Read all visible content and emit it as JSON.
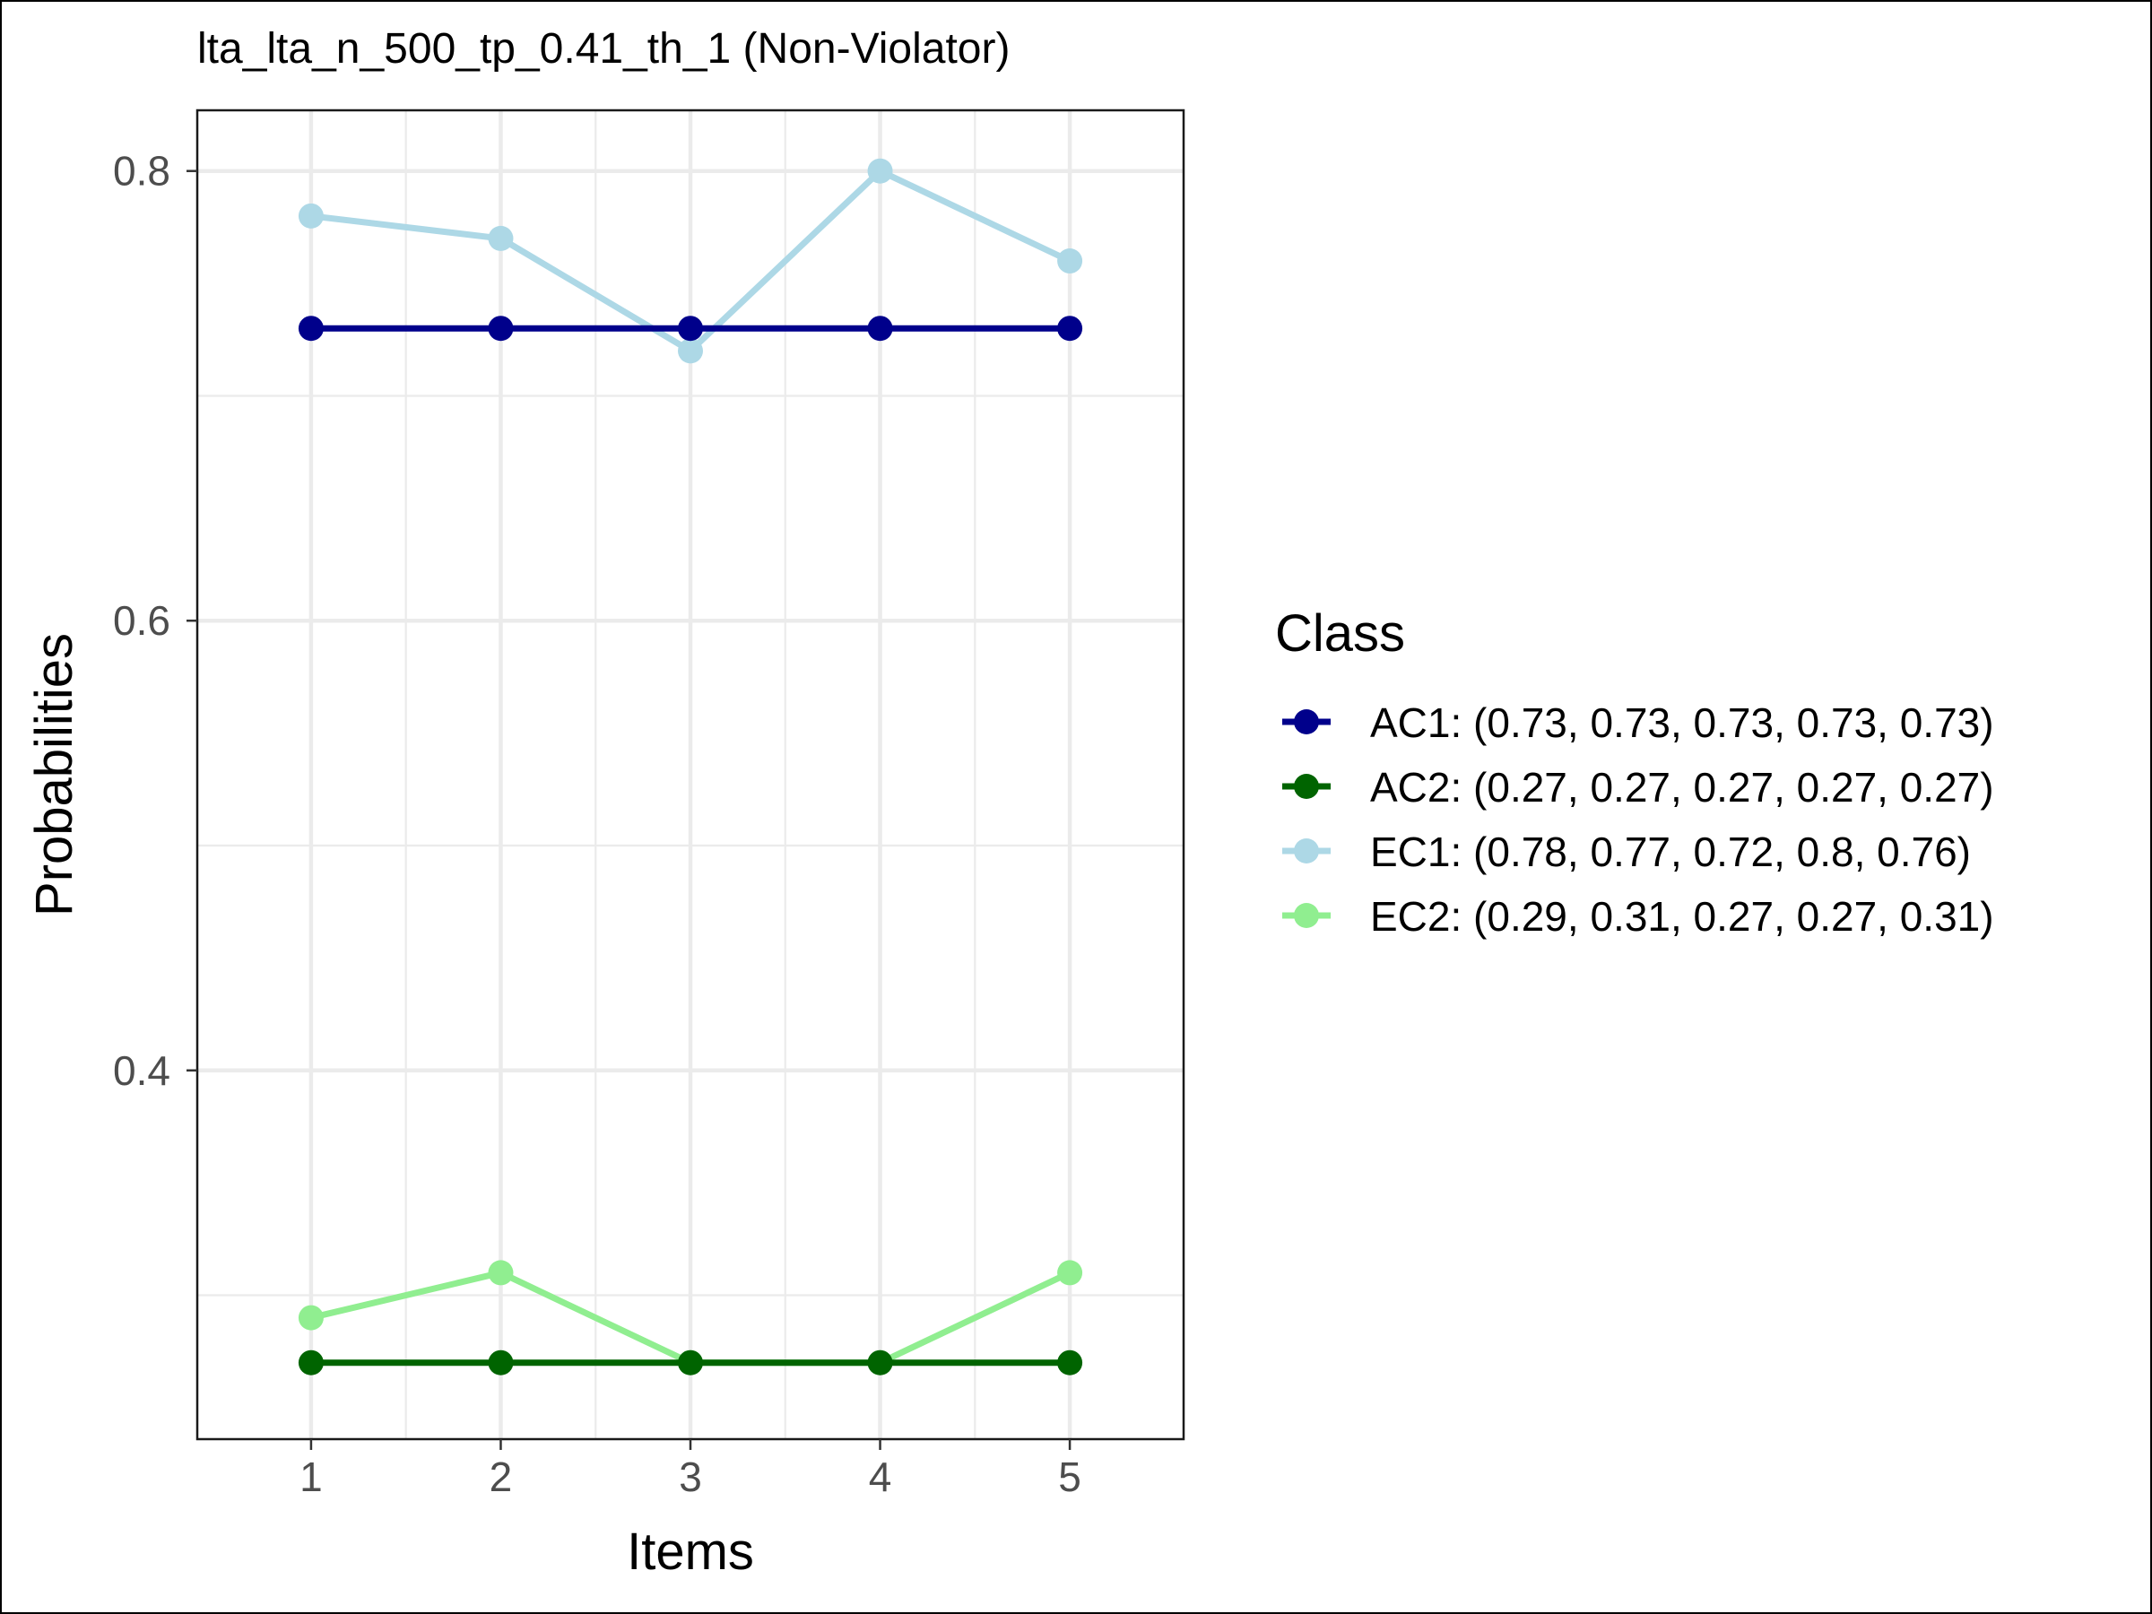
{
  "chart_data": {
    "type": "line",
    "title": "lta_lta_n_500_tp_0.41_th_1 (Non-Violator)",
    "xlabel": "Items",
    "ylabel": "Probabilities",
    "categories": [
      "1",
      "2",
      "3",
      "4",
      "5"
    ],
    "ylim": [
      0.236,
      0.827
    ],
    "yticks": [
      0.4,
      0.6,
      0.8
    ],
    "ytick_labels": [
      "0.4",
      "0.6",
      "0.8"
    ],
    "grid": true,
    "legend_title": "Class",
    "legend_position": "right",
    "series": [
      {
        "name": "AC1",
        "values": [
          0.73,
          0.73,
          0.73,
          0.73,
          0.73
        ],
        "color": "#00008B",
        "legend_label": "AC1: (0.73, 0.73, 0.73, 0.73, 0.73)"
      },
      {
        "name": "AC2",
        "values": [
          0.27,
          0.27,
          0.27,
          0.27,
          0.27
        ],
        "color": "#006400",
        "legend_label": "AC2: (0.27, 0.27, 0.27, 0.27, 0.27)"
      },
      {
        "name": "EC1",
        "values": [
          0.78,
          0.77,
          0.72,
          0.8,
          0.76
        ],
        "color": "#ADD8E6",
        "legend_label": "EC1: (0.78, 0.77, 0.72, 0.8, 0.76)"
      },
      {
        "name": "EC2",
        "values": [
          0.29,
          0.31,
          0.27,
          0.27,
          0.31
        ],
        "color": "#90EE90",
        "legend_label": "EC2: (0.29, 0.31, 0.27, 0.27, 0.31)"
      }
    ],
    "draw_order": [
      "EC1",
      "EC2",
      "AC1",
      "AC2"
    ]
  }
}
